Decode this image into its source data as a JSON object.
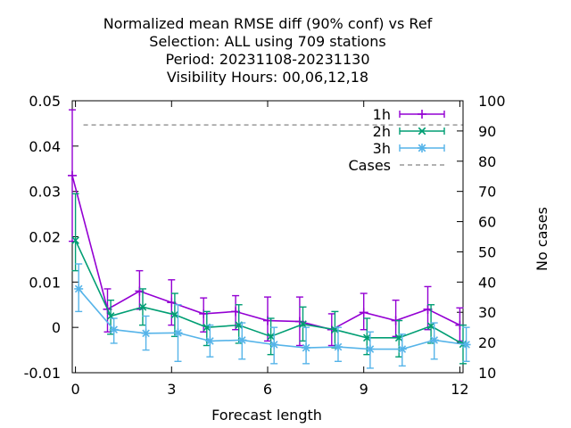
{
  "chart_data": {
    "type": "line",
    "title_lines": [
      "Normalized mean RMSE diff (90% conf) vs Ref",
      "Selection: ALL using   709 stations",
      "Period: 20231108-20231130",
      "Visibility   Hours:  00,06,12,18"
    ],
    "xlabel": "Forecast length",
    "ylabel": "",
    "y2label": "No cases",
    "xlim": [
      -0.1,
      12.1
    ],
    "ylim": [
      -0.01,
      0.05
    ],
    "y2lim": [
      10,
      100
    ],
    "xticks": [
      0,
      3,
      6,
      9,
      12
    ],
    "xtick_labels": [
      "0",
      "3",
      "6",
      "9",
      "12"
    ],
    "yticks": [
      -0.01,
      0,
      0.01,
      0.02,
      0.03,
      0.04,
      0.05
    ],
    "ytick_labels": [
      "-0.01",
      "0",
      "0.01",
      "0.02",
      "0.03",
      "0.04",
      "0.05"
    ],
    "y2ticks": [
      10,
      20,
      30,
      40,
      50,
      60,
      70,
      80,
      90,
      100
    ],
    "y2tick_labels": [
      "10",
      "20",
      "30",
      "40",
      "50",
      "60",
      "70",
      "80",
      "90",
      "100"
    ],
    "legend_position": "top-right",
    "series": [
      {
        "name": "1h",
        "color": "#9400d3",
        "marker": "plus",
        "x": [
          -0.1,
          1,
          2,
          3,
          4,
          5,
          6,
          7,
          8,
          9,
          10,
          11,
          12
        ],
        "y": [
          0.0335,
          0.004,
          0.008,
          0.0055,
          0.003,
          0.0035,
          0.0015,
          0.0013,
          -0.0005,
          0.0033,
          0.0015,
          0.004,
          0.0005
        ],
        "err_low": [
          0.019,
          -0.001,
          0.004,
          0.0005,
          -0.001,
          -0.0005,
          -0.003,
          -0.004,
          -0.004,
          -0.0005,
          -0.002,
          -0.0005,
          -0.003
        ],
        "err_high": [
          0.048,
          0.0085,
          0.0125,
          0.0105,
          0.0065,
          0.007,
          0.0067,
          0.0067,
          0.003,
          0.0075,
          0.006,
          0.009,
          0.0043
        ]
      },
      {
        "name": "2h",
        "color": "#009e73",
        "marker": "cross",
        "x": [
          0,
          1.1,
          2.1,
          3.1,
          4.1,
          5.1,
          6.1,
          7.1,
          8.1,
          9.1,
          10.1,
          11.1,
          12.1
        ],
        "y": [
          0.0192,
          0.0025,
          0.0045,
          0.0028,
          0.0,
          0.0005,
          -0.002,
          0.0007,
          -0.0005,
          -0.0023,
          -0.0023,
          0.0003,
          -0.0037
        ],
        "err_low": [
          0.0125,
          -0.0015,
          0.0005,
          -0.002,
          -0.004,
          -0.0035,
          -0.006,
          -0.003,
          -0.0045,
          -0.006,
          -0.0065,
          -0.0035,
          -0.008
        ],
        "err_high": [
          0.0295,
          0.006,
          0.0085,
          0.0075,
          0.0035,
          0.005,
          0.002,
          0.0045,
          0.0035,
          0.002,
          0.0015,
          0.005,
          0.0005
        ]
      },
      {
        "name": "3h",
        "color": "#56b4e9",
        "marker": "star",
        "x": [
          0.1,
          1.2,
          2.2,
          3.2,
          4.2,
          5.2,
          6.2,
          7.2,
          8.2,
          9.2,
          10.2,
          11.2,
          12.2
        ],
        "y": [
          0.0085,
          -0.0005,
          -0.0013,
          -0.0012,
          -0.003,
          -0.0028,
          -0.0038,
          -0.0045,
          -0.0043,
          -0.0048,
          -0.0048,
          -0.0028,
          -0.0038
        ],
        "err_low": [
          0.0035,
          -0.0035,
          -0.005,
          -0.0075,
          -0.0065,
          -0.007,
          -0.008,
          -0.008,
          -0.0075,
          -0.009,
          -0.0085,
          -0.007,
          -0.0075
        ],
        "err_high": [
          0.014,
          0.002,
          0.0025,
          0.005,
          0.0005,
          0.001,
          0.0,
          0.0,
          0.0,
          -0.001,
          -0.0015,
          0.001,
          0.0
        ]
      }
    ],
    "cases": {
      "name": "Cases",
      "color": "#999999",
      "value": 92
    }
  }
}
